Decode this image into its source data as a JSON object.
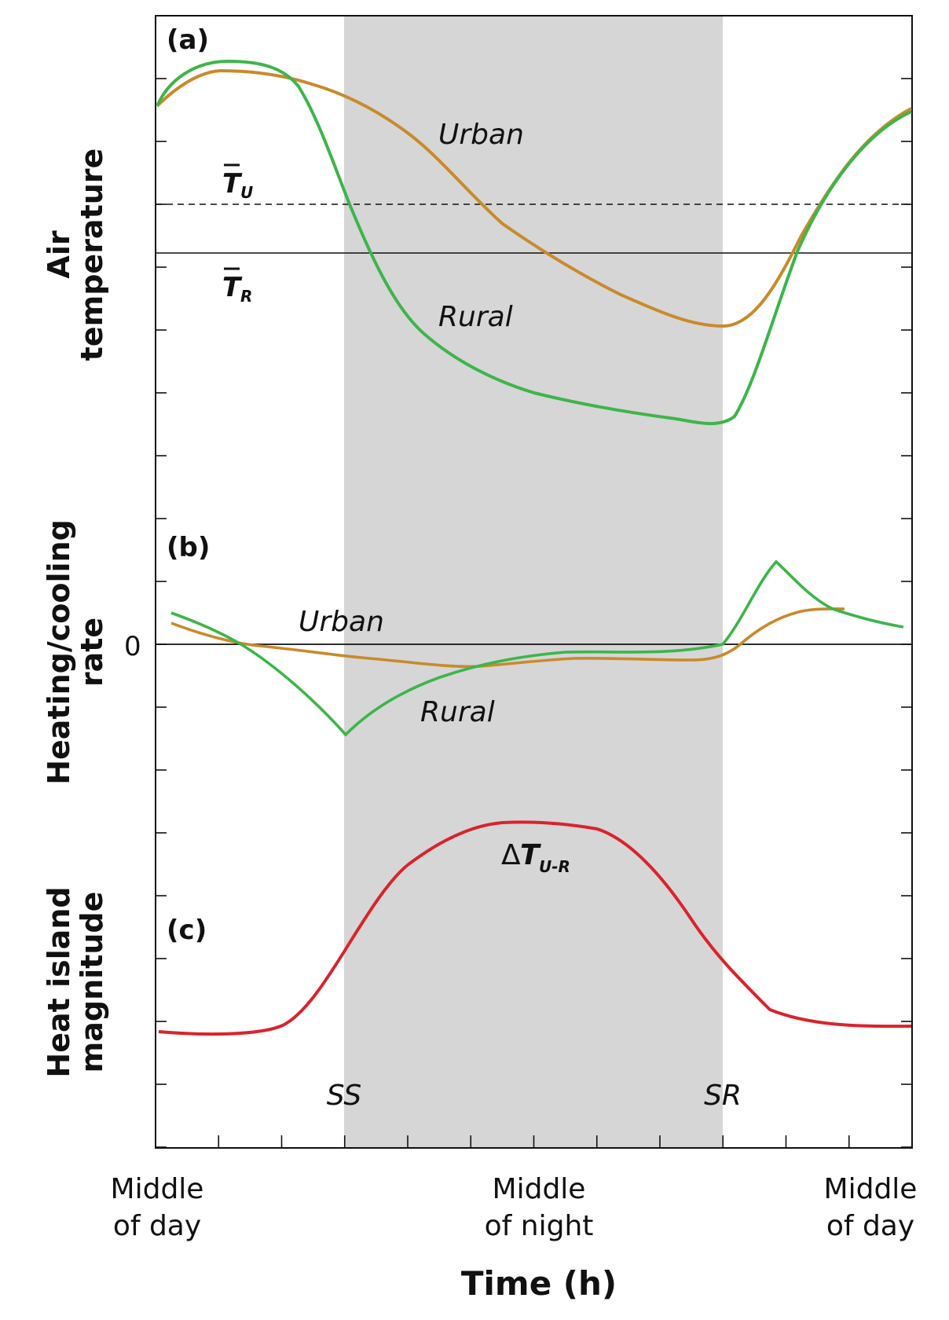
{
  "chart_data": {
    "type": "line",
    "x": {
      "ticks": 12,
      "tick_labels": [
        {
          "line1": "Middle",
          "line2": "of day"
        },
        {
          "line1": "Middle",
          "line2": "of night"
        },
        {
          "line1": "Middle",
          "line2": "of day"
        }
      ],
      "title": "Time (h)"
    },
    "sunset_label": "SS",
    "sunrise_label": "SR",
    "panels": [
      {
        "id": "a",
        "label": "(a)",
        "ylabel": [
          "Air",
          "temperature"
        ],
        "mean_lines": [
          {
            "symbol": "T",
            "sub": "U",
            "style": "dashed"
          },
          {
            "symbol": "T",
            "sub": "R",
            "style": "solid"
          }
        ],
        "series": [
          {
            "name": "Urban",
            "color": "#c98a2b"
          },
          {
            "name": "Rural",
            "color": "#3db54a"
          }
        ]
      },
      {
        "id": "b",
        "label": "(b)",
        "ylabel": [
          "Heating/cooling",
          "rate"
        ],
        "zero_label": "0",
        "series": [
          {
            "name": "Urban",
            "color": "#c98a2b"
          },
          {
            "name": "Rural",
            "color": "#3db54a"
          }
        ]
      },
      {
        "id": "c",
        "label": "(c)",
        "ylabel": [
          "Heat island",
          "magnitude"
        ],
        "series": [
          {
            "name_prefix": "Δ",
            "symbol": "T",
            "sub": "U-R",
            "color": "#d9232d"
          }
        ]
      }
    ],
    "night_shading_color": "#d6d6d6"
  }
}
